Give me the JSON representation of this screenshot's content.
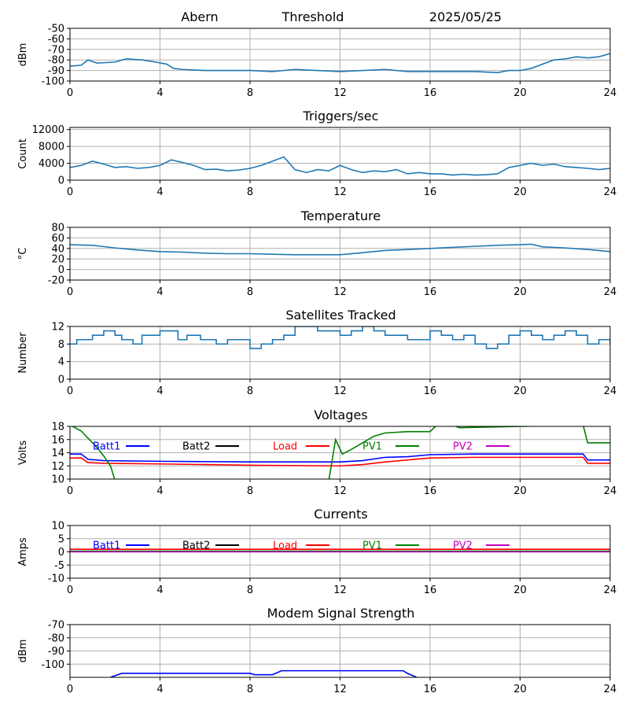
{
  "header": {
    "station": "Abern",
    "subtitle": "Threshold",
    "date": "2025/05/25"
  },
  "chart_data": [
    {
      "id": "threshold",
      "type": "line",
      "title": "",
      "ylabel": "dBm",
      "xlim": [
        0,
        24
      ],
      "ylim": [
        -100,
        -50
      ],
      "xticks": [
        0,
        4,
        8,
        12,
        16,
        20,
        24
      ],
      "yticks": [
        -100,
        -90,
        -80,
        -70,
        -60,
        -50
      ],
      "grid": true,
      "series": [
        {
          "color": "#1f77b4",
          "x": [
            0,
            0.5,
            0.8,
            1.2,
            2,
            2.5,
            3.2,
            3.8,
            4.3,
            4.6,
            5,
            6,
            8,
            9,
            10,
            12,
            14,
            15,
            16,
            18,
            19,
            19.5,
            20,
            20.5,
            21,
            21.5,
            22,
            22.5,
            23,
            23.5,
            24
          ],
          "y": [
            -86,
            -85,
            -80,
            -83,
            -82,
            -79,
            -80,
            -82,
            -84,
            -88,
            -89,
            -90,
            -90,
            -91,
            -89,
            -91,
            -89,
            -91,
            -91,
            -91,
            -92,
            -90,
            -90,
            -88,
            -84,
            -80,
            -79,
            -77,
            -78,
            -77,
            -74
          ]
        }
      ]
    },
    {
      "id": "triggers",
      "type": "line",
      "title": "Triggers/sec",
      "ylabel": "Count",
      "xlim": [
        0,
        24
      ],
      "ylim": [
        0,
        12500
      ],
      "xticks": [
        0,
        4,
        8,
        12,
        16,
        20,
        24
      ],
      "yticks": [
        0,
        4000,
        8000,
        12000
      ],
      "grid": true,
      "series": [
        {
          "color": "#1f77b4",
          "x": [
            0,
            0.5,
            1,
            1.5,
            2,
            2.5,
            3,
            3.5,
            4,
            4.5,
            5,
            5.5,
            6,
            6.5,
            7,
            7.5,
            8,
            8.5,
            9,
            9.5,
            10,
            10.5,
            11,
            11.5,
            12,
            12.5,
            13,
            13.5,
            14,
            14.5,
            15,
            15.5,
            16,
            16.5,
            17,
            17.5,
            18,
            18.5,
            19,
            19.5,
            20,
            20.5,
            21,
            21.5,
            22,
            22.5,
            23,
            23.5,
            24
          ],
          "y": [
            3000,
            3500,
            4500,
            3800,
            3000,
            3200,
            2800,
            3000,
            3500,
            4800,
            4200,
            3500,
            2500,
            2600,
            2200,
            2400,
            2800,
            3500,
            4500,
            5500,
            2500,
            1800,
            2500,
            2200,
            3500,
            2500,
            1800,
            2200,
            2000,
            2500,
            1500,
            1800,
            1500,
            1500,
            1200,
            1400,
            1200,
            1300,
            1500,
            3000,
            3500,
            4000,
            3500,
            3800,
            3200,
            3000,
            2800,
            2500,
            2800
          ]
        }
      ]
    },
    {
      "id": "temperature",
      "type": "line",
      "title": "Temperature",
      "ylabel": "°C",
      "xlim": [
        0,
        24
      ],
      "ylim": [
        -20,
        80
      ],
      "xticks": [
        0,
        4,
        8,
        12,
        16,
        20,
        24
      ],
      "yticks": [
        -20,
        0,
        20,
        40,
        60,
        80
      ],
      "grid": true,
      "series": [
        {
          "color": "#1f77b4",
          "x": [
            0,
            1,
            2,
            3,
            4,
            5,
            6,
            7,
            8,
            9,
            10,
            11,
            12,
            13,
            14,
            15,
            16,
            17,
            18,
            19,
            20,
            20.5,
            21,
            22,
            23,
            24
          ],
          "y": [
            47,
            46,
            41,
            37,
            34,
            33,
            31,
            30,
            30,
            29,
            28,
            28,
            28,
            32,
            36,
            38,
            40,
            42,
            44,
            46,
            47,
            48,
            43,
            41,
            38,
            34
          ]
        }
      ]
    },
    {
      "id": "satellites",
      "type": "line",
      "title": "Satellites Tracked",
      "ylabel": "Number",
      "xlim": [
        0,
        24
      ],
      "ylim": [
        0,
        12
      ],
      "xticks": [
        0,
        4,
        8,
        12,
        16,
        20,
        24
      ],
      "yticks": [
        0,
        4,
        8,
        12
      ],
      "grid": true,
      "series": [
        {
          "color": "#1f77b4",
          "step": true,
          "x": [
            0,
            0.3,
            1,
            1.5,
            2,
            2.3,
            2.8,
            3.2,
            4,
            4.8,
            5.2,
            5.8,
            6.5,
            7,
            8,
            8.5,
            9,
            9.5,
            10,
            11,
            12,
            12.5,
            13,
            13.5,
            14,
            15,
            16,
            16.5,
            17,
            17.5,
            18,
            18.5,
            19,
            19.5,
            20,
            20.5,
            21,
            21.5,
            22,
            22.5,
            23,
            23.5,
            24
          ],
          "y": [
            8,
            9,
            10,
            11,
            10,
            9,
            8,
            10,
            11,
            9,
            10,
            9,
            8,
            9,
            7,
            8,
            9,
            10,
            12,
            11,
            10,
            11,
            12,
            11,
            10,
            9,
            11,
            10,
            9,
            10,
            8,
            7,
            8,
            10,
            11,
            10,
            9,
            10,
            11,
            10,
            8,
            9,
            8
          ]
        }
      ]
    },
    {
      "id": "voltages",
      "type": "line",
      "title": "Voltages",
      "ylabel": "Volts",
      "xlim": [
        0,
        24
      ],
      "ylim": [
        10,
        18
      ],
      "xticks": [
        0,
        4,
        8,
        12,
        16,
        20,
        24
      ],
      "yticks": [
        10,
        12,
        14,
        16,
        18
      ],
      "grid": true,
      "legend": "inline-top",
      "series": [
        {
          "name": "Batt1",
          "color": "#0000ff",
          "x": [
            0,
            0.5,
            0.8,
            1.5,
            4,
            8,
            12,
            13,
            14,
            15,
            16,
            18,
            22.8,
            23,
            24
          ],
          "y": [
            13.8,
            13.8,
            13.0,
            12.8,
            12.7,
            12.6,
            12.6,
            12.8,
            13.3,
            13.4,
            13.7,
            13.8,
            13.8,
            12.9,
            12.9
          ]
        },
        {
          "name": "Batt2",
          "color": "#000000",
          "x": [],
          "y": []
        },
        {
          "name": "Load",
          "color": "#ff0000",
          "x": [
            0,
            0.5,
            0.8,
            1.5,
            4,
            8,
            12,
            13,
            14,
            15,
            16,
            18,
            22.8,
            23,
            24
          ],
          "y": [
            13.2,
            13.2,
            12.5,
            12.4,
            12.3,
            12.1,
            12.0,
            12.2,
            12.6,
            12.9,
            13.2,
            13.3,
            13.3,
            12.4,
            12.4
          ]
        },
        {
          "name": "PV1",
          "color": "#008000",
          "x": [
            0,
            0.5,
            1,
            1.3,
            1.5,
            1.8,
            2.0,
            11.5,
            11.8,
            12.1,
            12.5,
            13,
            13.5,
            14,
            15,
            16,
            16.3,
            17,
            17.3,
            22.8,
            23,
            24
          ],
          "y": [
            18.2,
            17.3,
            15.5,
            14.4,
            13.5,
            12.0,
            9.8,
            9.8,
            16.0,
            13.8,
            14.5,
            15.5,
            16.5,
            17.0,
            17.2,
            17.2,
            18.2,
            18.2,
            17.8,
            18.2,
            15.5,
            15.5
          ]
        },
        {
          "name": "PV2",
          "color": "#bf00bf",
          "x": [],
          "y": []
        }
      ]
    },
    {
      "id": "currents",
      "type": "line",
      "title": "Currents",
      "ylabel": "Amps",
      "xlim": [
        0,
        24
      ],
      "ylim": [
        -10,
        10
      ],
      "xticks": [
        0,
        4,
        8,
        12,
        16,
        20,
        24
      ],
      "yticks": [
        -10,
        -5,
        0,
        5,
        10
      ],
      "grid": true,
      "legend": "inline-top",
      "series": [
        {
          "name": "Batt1",
          "color": "#0000ff",
          "x": [
            0,
            24
          ],
          "y": [
            0.2,
            0.2
          ]
        },
        {
          "name": "Batt2",
          "color": "#000000",
          "x": [],
          "y": []
        },
        {
          "name": "Load",
          "color": "#ff0000",
          "x": [
            0,
            4,
            8,
            12,
            16,
            20,
            24
          ],
          "y": [
            1.0,
            1.0,
            1.0,
            1.0,
            1.0,
            1.0,
            1.0
          ]
        },
        {
          "name": "PV1",
          "color": "#008000",
          "x": [
            0,
            24
          ],
          "y": [
            0.3,
            0.3
          ]
        },
        {
          "name": "PV2",
          "color": "#bf00bf",
          "x": [
            0,
            24
          ],
          "y": [
            0.0,
            0.0
          ]
        }
      ]
    },
    {
      "id": "modem",
      "type": "line",
      "title": "Modem Signal Strength",
      "ylabel": "dBm",
      "xlim": [
        0,
        24
      ],
      "ylim": [
        -110,
        -70
      ],
      "xticks": [
        0,
        4,
        8,
        12,
        16,
        20,
        24
      ],
      "yticks": [
        -100,
        -90,
        -80,
        -70
      ],
      "grid": true,
      "series": [
        {
          "color": "#0000ff",
          "x": [
            1.8,
            2.3,
            8.0,
            8.2,
            9.0,
            9.4,
            14.8,
            15.0,
            15.4
          ],
          "y": [
            -110,
            -107,
            -107,
            -108,
            -108,
            -105,
            -105,
            -107,
            -110
          ]
        }
      ]
    }
  ]
}
